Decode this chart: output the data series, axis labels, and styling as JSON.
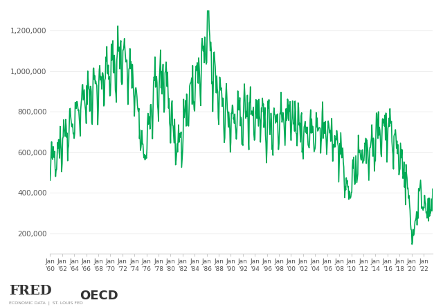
{
  "line_color": "#00aa55",
  "line_width": 1.2,
  "background_color": "#ffffff",
  "ylim": [
    100000,
    1300000
  ],
  "yticks": [
    200000,
    400000,
    600000,
    800000,
    1000000,
    1200000
  ],
  "ytick_labels": [
    "200,000",
    "400,000",
    "600,000",
    "800,000",
    "1,000,000",
    "1,200,000"
  ],
  "xtick_years": [
    1960,
    1962,
    1964,
    1966,
    1968,
    1970,
    1972,
    1974,
    1976,
    1978,
    1980,
    1982,
    1984,
    1986,
    1988,
    1990,
    1992,
    1994,
    1996,
    1998,
    2000,
    2002,
    2004,
    2006,
    2008,
    2010,
    2012,
    2014,
    2016,
    2018,
    2020,
    2022
  ],
  "spine_color": "#cccccc",
  "tick_color": "#888888",
  "label_color": "#555555"
}
